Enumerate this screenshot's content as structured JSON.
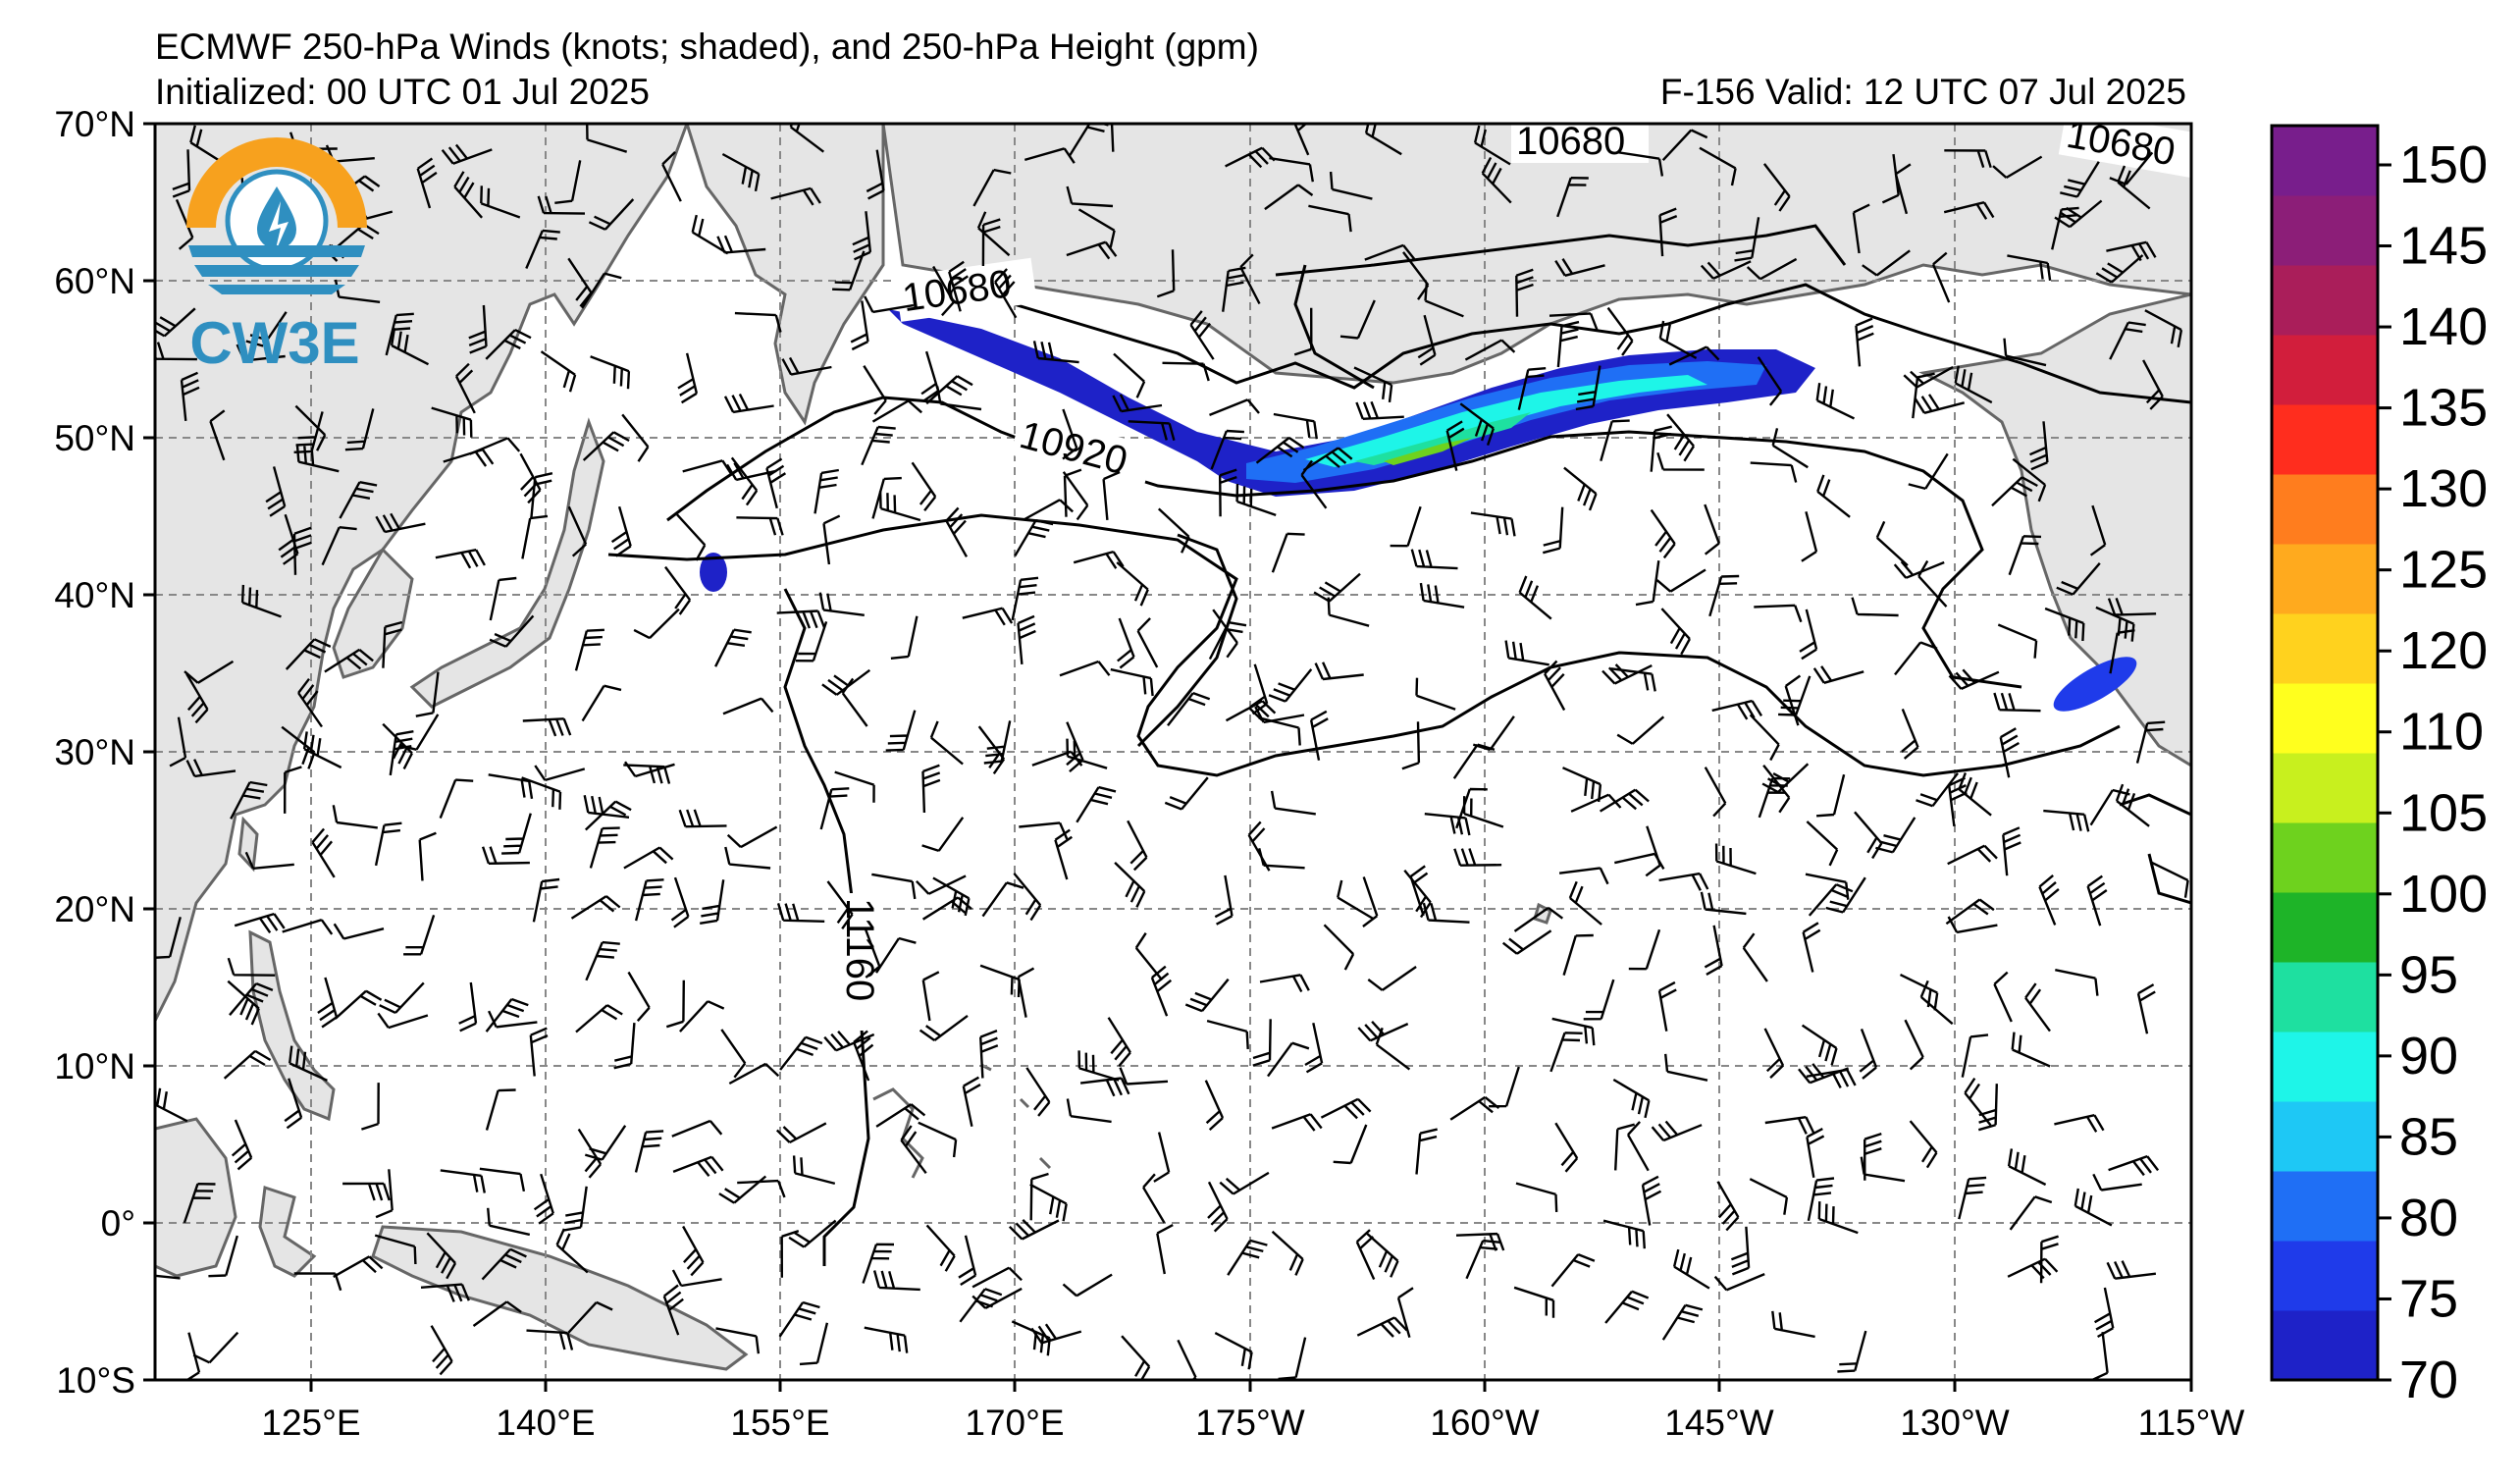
{
  "header": {
    "title": "ECMWF 250-hPa Winds (knots; shaded), and 250-hPa Height (gpm)",
    "initialized": "Initialized: 00 UTC 01 Jul 2025",
    "valid": "F-156  Valid: 12 UTC 07 Jul 2025"
  },
  "logo": {
    "text": "CW3E"
  },
  "map": {
    "lat_labels": [
      "70°N",
      "60°N",
      "50°N",
      "40°N",
      "30°N",
      "20°N",
      "10°N",
      "0°",
      "10°S"
    ],
    "lon_labels": [
      "125°E",
      "140°E",
      "155°E",
      "170°E",
      "175°W",
      "160°W",
      "145°W",
      "130°W",
      "115°W"
    ],
    "contour_labels": [
      "10680",
      "10680",
      "10680",
      "10920",
      "11160"
    ]
  },
  "colorbar": {
    "ticks": [
      "70",
      "75",
      "80",
      "85",
      "90",
      "95",
      "100",
      "105",
      "110",
      "120",
      "125",
      "130",
      "135",
      "140",
      "145",
      "150"
    ],
    "colors": [
      "#1e22c8",
      "#1f3bea",
      "#1f6ff5",
      "#1ec8f5",
      "#1ef5e8",
      "#1ee0a0",
      "#1eb428",
      "#6ed21e",
      "#c8f01e",
      "#ffff1e",
      "#ffd21e",
      "#ffaa1e",
      "#ff7d1e",
      "#ff2d1e",
      "#d21e3c",
      "#aa1e5a",
      "#8c1e78",
      "#781e8c"
    ]
  },
  "colors": {
    "land": "#e5e5e5",
    "coast": "#666666",
    "jet_core": "#1ee0a0"
  }
}
